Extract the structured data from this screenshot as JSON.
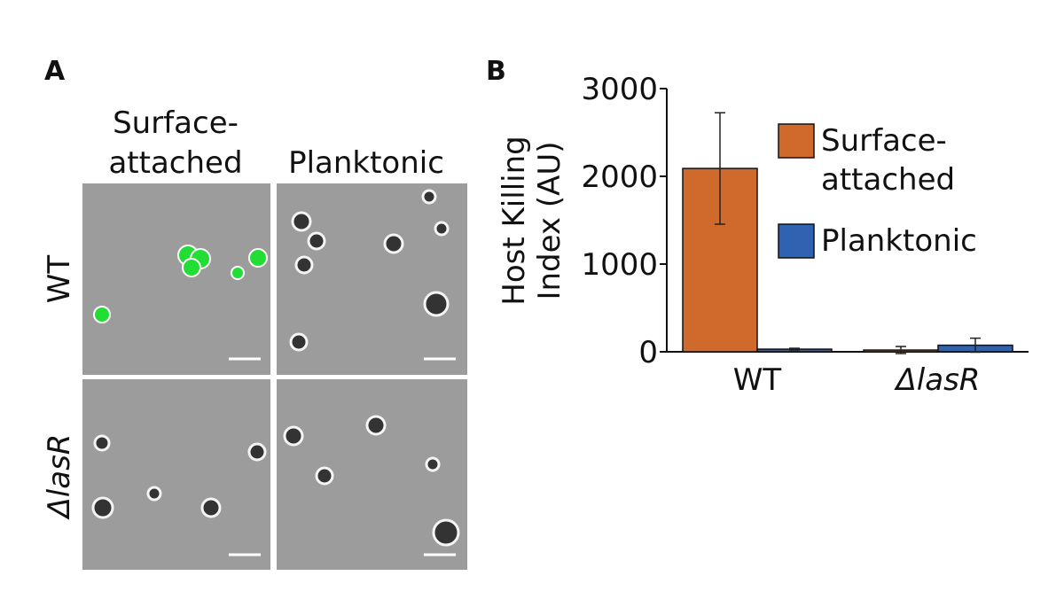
{
  "panel_a": {
    "label": "A",
    "columns": [
      "Surface-\nattached",
      "Planktonic"
    ],
    "rows": [
      "WT",
      "ΔlasR"
    ]
  },
  "panel_b_label": "B",
  "chart_data": {
    "type": "bar",
    "ylabel": "Host Killing\nIndex (AU)",
    "categories": [
      "WT",
      "ΔlasR"
    ],
    "series": [
      {
        "name": "Surface-\nattached",
        "color": "#cf6a2c",
        "values": [
          2090,
          20
        ],
        "errors": [
          635,
          40
        ]
      },
      {
        "name": "Planktonic",
        "color": "#2f62b0",
        "values": [
          30,
          75
        ],
        "errors": [
          10,
          80
        ]
      }
    ],
    "ylim": [
      0,
      3000
    ],
    "yticks": [
      0,
      1000,
      2000,
      3000
    ],
    "grid": false
  }
}
